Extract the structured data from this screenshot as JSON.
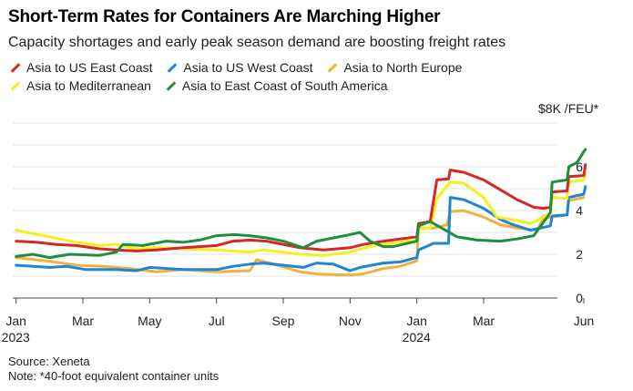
{
  "title": "Short-Term Rates for Containers Are Marching Higher",
  "subtitle": "Capacity shortages and early peak season demand are boosting freight rates",
  "unit_label": "$8K /FEU*",
  "source": "Source: Xeneta",
  "note": "Note: *40-foot equivalent container units",
  "legend_rows": [
    [
      {
        "name": "Asia to US East Coast",
        "color": "#d62728"
      },
      {
        "name": "Asia to US West Coast",
        "color": "#1f86d6"
      },
      {
        "name": "Asia to North Europe",
        "color": "#f2b13c"
      }
    ],
    [
      {
        "name": "Asia to Mediterranean",
        "color": "#f6ef1c"
      },
      {
        "name": "Asia to East Coast of South America",
        "color": "#1e8f3c"
      }
    ]
  ],
  "chart_data": {
    "type": "line",
    "title": "Short-Term Rates for Containers Are Marching Higher",
    "ylabel": "$8K /FEU*",
    "ylim": [
      0,
      8
    ],
    "yticks": [
      0,
      2,
      4,
      6
    ],
    "x_unit": "months since Jan 1, 2023",
    "xlim": [
      -0.1,
      17.3
    ],
    "xticks": [
      {
        "x": 0,
        "label": "Jan",
        "sub": "2023"
      },
      {
        "x": 2,
        "label": "Mar",
        "sub": ""
      },
      {
        "x": 4,
        "label": "May",
        "sub": ""
      },
      {
        "x": 6,
        "label": "Jul",
        "sub": ""
      },
      {
        "x": 8,
        "label": "Sep",
        "sub": ""
      },
      {
        "x": 10,
        "label": "Nov",
        "sub": ""
      },
      {
        "x": 12,
        "label": "Jan",
        "sub": "2024"
      },
      {
        "x": 14,
        "label": "Mar",
        "sub": ""
      },
      {
        "x": 17,
        "label": "Jun",
        "sub": ""
      }
    ],
    "series": [
      {
        "name": "Asia to North Europe",
        "color": "#f2b13c",
        "points": [
          [
            0,
            1.85
          ],
          [
            0.9,
            1.7
          ],
          [
            1.8,
            1.5
          ],
          [
            2.6,
            1.45
          ],
          [
            3.4,
            1.35
          ],
          [
            4.2,
            1.2
          ],
          [
            5,
            1.3
          ],
          [
            6,
            1.2
          ],
          [
            7,
            1.25
          ],
          [
            7.2,
            1.75
          ],
          [
            7.6,
            1.6
          ],
          [
            8.5,
            1.2
          ],
          [
            9,
            1.1
          ],
          [
            10,
            1.05
          ],
          [
            10.4,
            1.1
          ],
          [
            11,
            1.35
          ],
          [
            11.5,
            1.45
          ],
          [
            12,
            1.7
          ],
          [
            12.05,
            3.2
          ],
          [
            12.5,
            3.2
          ],
          [
            12.9,
            3.35
          ],
          [
            13,
            3.95
          ],
          [
            13.4,
            4.0
          ],
          [
            14,
            3.7
          ],
          [
            14.5,
            3.35
          ],
          [
            15,
            3.2
          ],
          [
            15.6,
            3.1
          ],
          [
            15.8,
            3.65
          ],
          [
            16.5,
            3.8
          ],
          [
            16.55,
            4.45
          ],
          [
            17,
            4.6
          ]
        ]
      },
      {
        "name": "Asia to US West Coast",
        "color": "#1f86d6",
        "points": [
          [
            0,
            1.5
          ],
          [
            1,
            1.4
          ],
          [
            1.5,
            1.45
          ],
          [
            2.1,
            1.3
          ],
          [
            3,
            1.3
          ],
          [
            3.6,
            1.25
          ],
          [
            4,
            1.4
          ],
          [
            5,
            1.3
          ],
          [
            6,
            1.3
          ],
          [
            6.5,
            1.45
          ],
          [
            7,
            1.55
          ],
          [
            7.4,
            1.6
          ],
          [
            8,
            1.5
          ],
          [
            8.6,
            1.4
          ],
          [
            9,
            1.6
          ],
          [
            9.5,
            1.55
          ],
          [
            10,
            1.25
          ],
          [
            10.3,
            1.4
          ],
          [
            11,
            1.6
          ],
          [
            11.5,
            1.65
          ],
          [
            12,
            1.85
          ],
          [
            12.05,
            2.2
          ],
          [
            12.5,
            2.5
          ],
          [
            12.95,
            2.5
          ],
          [
            13,
            4.6
          ],
          [
            13.4,
            4.5
          ],
          [
            14,
            4.1
          ],
          [
            14.5,
            3.6
          ],
          [
            14.8,
            3.4
          ],
          [
            15.4,
            3.1
          ],
          [
            16,
            3.3
          ],
          [
            16.05,
            3.75
          ],
          [
            16.5,
            3.8
          ],
          [
            16.55,
            4.6
          ],
          [
            17,
            4.75
          ],
          [
            17.05,
            5.1
          ]
        ]
      },
      {
        "name": "Asia to Mediterranean",
        "color": "#f6ef1c",
        "points": [
          [
            0,
            3.1
          ],
          [
            1,
            2.8
          ],
          [
            1.8,
            2.55
          ],
          [
            2.5,
            2.4
          ],
          [
            3,
            2.45
          ],
          [
            3.6,
            2.25
          ],
          [
            4.2,
            2.3
          ],
          [
            5,
            2.25
          ],
          [
            6,
            2.2
          ],
          [
            7,
            2.1
          ],
          [
            7.4,
            2.2
          ],
          [
            8,
            2.1
          ],
          [
            8.5,
            2.0
          ],
          [
            9.2,
            1.95
          ],
          [
            10,
            2.1
          ],
          [
            10.6,
            2.35
          ],
          [
            11.2,
            2.5
          ],
          [
            12,
            2.65
          ],
          [
            12.05,
            3.15
          ],
          [
            12.4,
            3.2
          ],
          [
            12.6,
            4.55
          ],
          [
            13,
            5.3
          ],
          [
            13.4,
            5.25
          ],
          [
            14,
            4.6
          ],
          [
            14.4,
            3.7
          ],
          [
            15,
            3.55
          ],
          [
            15.4,
            3.4
          ],
          [
            15.6,
            3.55
          ],
          [
            16,
            3.9
          ],
          [
            16.05,
            4.6
          ],
          [
            16.5,
            4.55
          ],
          [
            16.55,
            5.3
          ],
          [
            17,
            5.4
          ],
          [
            17.05,
            5.7
          ]
        ]
      },
      {
        "name": "Asia to US East Coast",
        "color": "#d62728",
        "points": [
          [
            0,
            2.6
          ],
          [
            0.6,
            2.55
          ],
          [
            1.2,
            2.45
          ],
          [
            1.8,
            2.4
          ],
          [
            2.5,
            2.25
          ],
          [
            3,
            2.2
          ],
          [
            3.6,
            2.15
          ],
          [
            4.2,
            2.2
          ],
          [
            5,
            2.3
          ],
          [
            5.5,
            2.35
          ],
          [
            6,
            2.4
          ],
          [
            6.5,
            2.6
          ],
          [
            7,
            2.65
          ],
          [
            7.5,
            2.6
          ],
          [
            8,
            2.45
          ],
          [
            8.5,
            2.3
          ],
          [
            9.2,
            2.2
          ],
          [
            10,
            2.3
          ],
          [
            10.4,
            2.45
          ],
          [
            11,
            2.6
          ],
          [
            11.5,
            2.7
          ],
          [
            12,
            2.8
          ],
          [
            12.05,
            3.4
          ],
          [
            12.4,
            3.5
          ],
          [
            12.6,
            5.4
          ],
          [
            12.95,
            5.45
          ],
          [
            13,
            5.85
          ],
          [
            13.4,
            5.75
          ],
          [
            14,
            5.4
          ],
          [
            14.5,
            4.95
          ],
          [
            15,
            4.5
          ],
          [
            15.5,
            4.15
          ],
          [
            15.8,
            4.1
          ],
          [
            16,
            4.15
          ],
          [
            16.05,
            4.85
          ],
          [
            16.5,
            4.9
          ],
          [
            16.55,
            5.55
          ],
          [
            17,
            5.6
          ],
          [
            17.05,
            6.1
          ]
        ]
      },
      {
        "name": "Asia to East Coast of South America",
        "color": "#1e8f3c",
        "points": [
          [
            0,
            1.9
          ],
          [
            0.5,
            2.0
          ],
          [
            1,
            1.85
          ],
          [
            1.6,
            2.0
          ],
          [
            2.5,
            1.95
          ],
          [
            3,
            2.1
          ],
          [
            3.2,
            2.45
          ],
          [
            3.8,
            2.4
          ],
          [
            4.5,
            2.6
          ],
          [
            5,
            2.55
          ],
          [
            5.5,
            2.65
          ],
          [
            6,
            2.85
          ],
          [
            6.5,
            2.9
          ],
          [
            7,
            2.85
          ],
          [
            7.5,
            2.75
          ],
          [
            8,
            2.6
          ],
          [
            8.6,
            2.3
          ],
          [
            9,
            2.6
          ],
          [
            9.5,
            2.75
          ],
          [
            10,
            2.9
          ],
          [
            10.3,
            3.0
          ],
          [
            10.6,
            2.6
          ],
          [
            11,
            2.35
          ],
          [
            11.3,
            2.35
          ],
          [
            12,
            2.6
          ],
          [
            12.05,
            3.3
          ],
          [
            12.4,
            3.5
          ],
          [
            12.8,
            3.15
          ],
          [
            13.2,
            2.8
          ],
          [
            13.8,
            2.65
          ],
          [
            14.5,
            2.6
          ],
          [
            15,
            2.7
          ],
          [
            15.5,
            2.85
          ],
          [
            16,
            3.9
          ],
          [
            16.05,
            5.3
          ],
          [
            16.5,
            5.4
          ],
          [
            16.55,
            6.0
          ],
          [
            16.8,
            6.2
          ],
          [
            17,
            6.7
          ],
          [
            17.05,
            6.8
          ]
        ]
      }
    ]
  }
}
